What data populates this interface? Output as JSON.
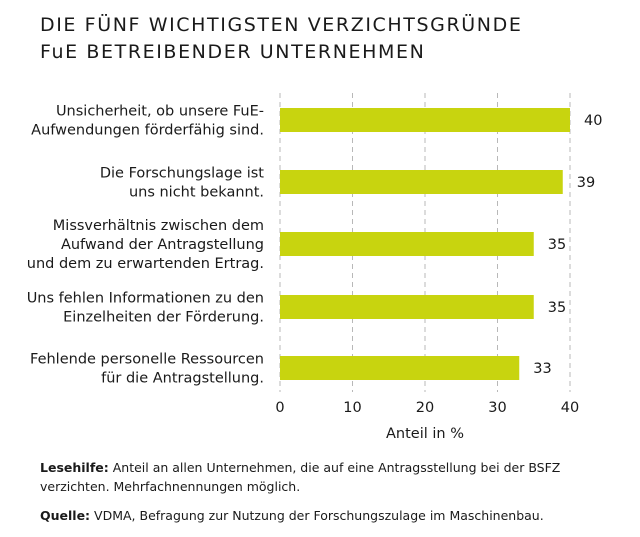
{
  "title_lines": [
    "DIE FÜNF WICHTIGSTEN VERZICHTSGRÜNDE",
    "FuE BETREIBENDER UNTERNEHMEN"
  ],
  "chart_data": {
    "type": "bar",
    "orientation": "horizontal",
    "categories": [
      [
        "Unsicherheit, ob unsere FuE-",
        "Aufwendungen förderfähig sind."
      ],
      [
        "Die Forschungslage ist",
        "uns nicht bekannt."
      ],
      [
        "Missverhältnis zwischen dem",
        "Aufwand der Antragstellung",
        "und dem zu erwartenden Ertrag."
      ],
      [
        "Uns fehlen Informationen zu den",
        "Einzelheiten der Förderung."
      ],
      [
        "Fehlende personelle Ressourcen",
        "für die Antragstellung."
      ]
    ],
    "values": [
      40,
      39,
      35,
      35,
      33
    ],
    "value_labels": [
      "40",
      "39",
      "35",
      "35",
      "33"
    ],
    "xticks": [
      0,
      10,
      20,
      30,
      40
    ],
    "xtick_labels": [
      "0",
      "10",
      "20",
      "30",
      "40"
    ],
    "xlim": [
      0,
      40
    ],
    "xlabel": "Anteil in %",
    "grid": "vertical dashed",
    "bar_color": "#c8d40f"
  },
  "notes": {
    "lesehilfe_label": "Lesehilfe:",
    "lesehilfe_text": " Anteil an allen Unternehmen, die auf eine Antragsstellung bei der BSFZ verzichten. Mehrfachnennungen möglich.",
    "quelle_label": "Quelle:",
    "quelle_text": " VDMA, Befragung zur Nutzung der Forschungszulage im Maschinenbau."
  }
}
